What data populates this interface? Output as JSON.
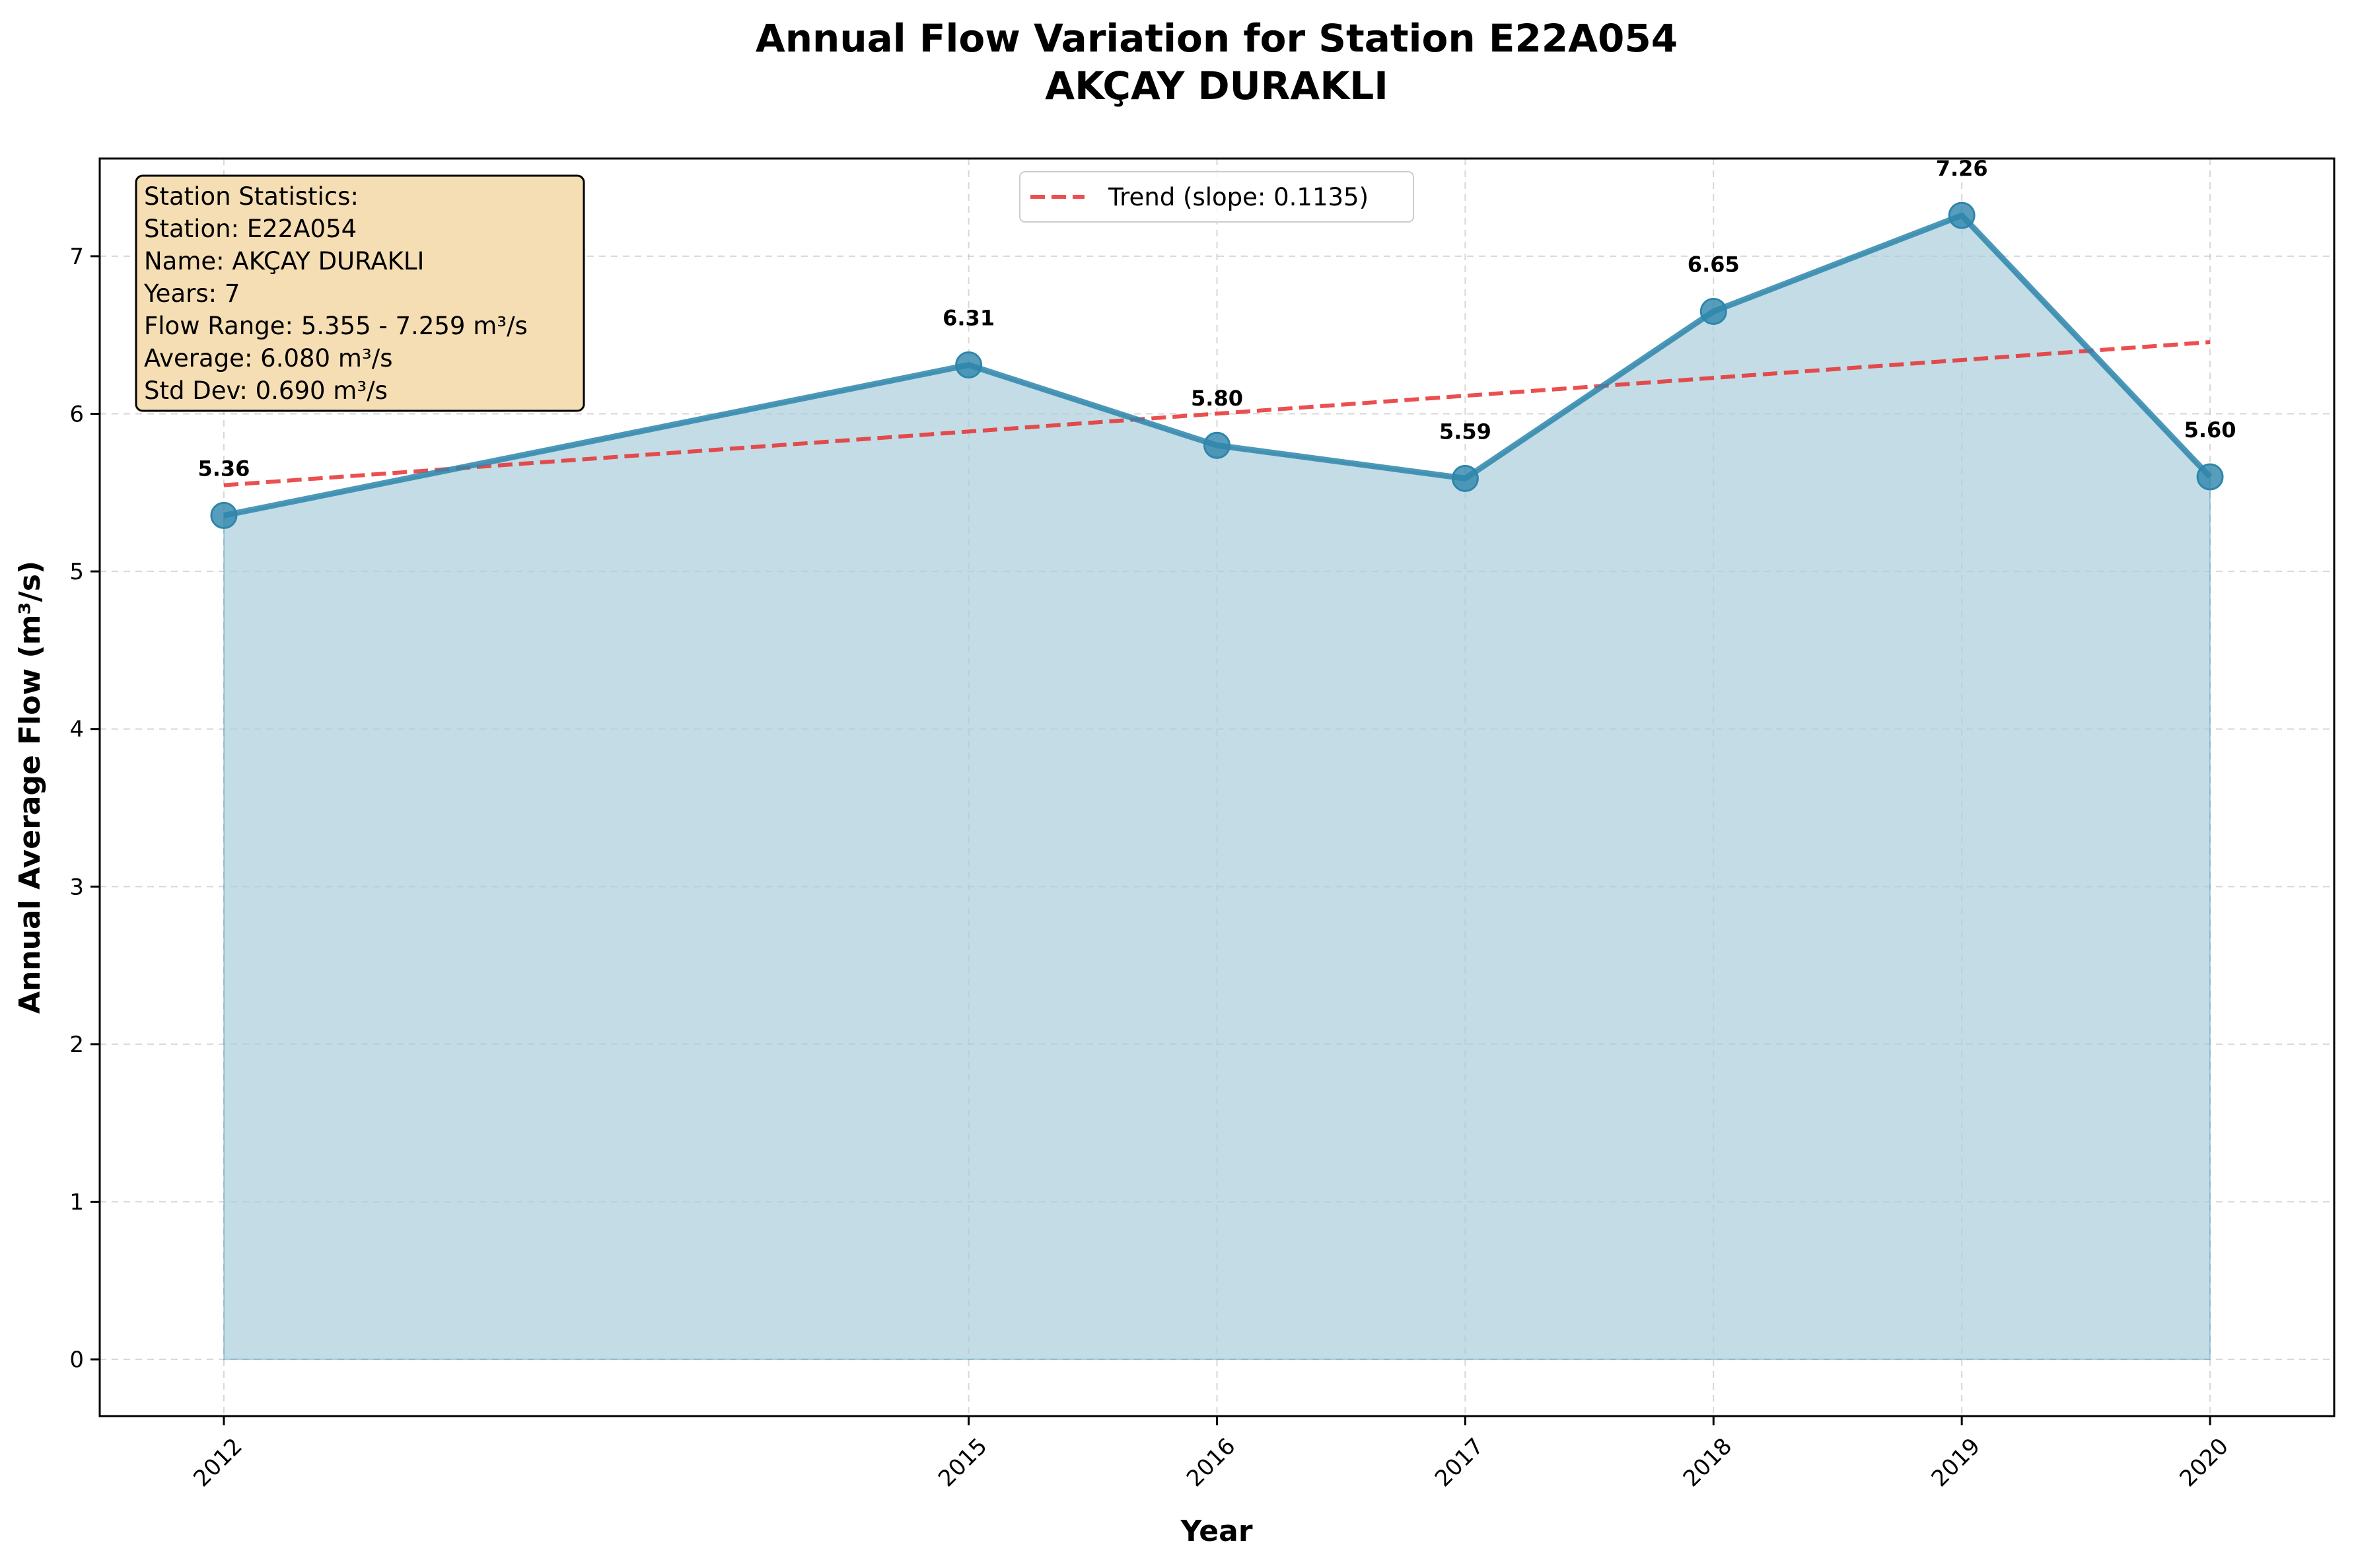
{
  "chart_data": {
    "type": "area",
    "title": "Annual Flow Variation for Station E22A054",
    "subtitle": "AKÇAY  DURAKLI",
    "xlabel": "Year",
    "ylabel": "Annual Average Flow (m³/s)",
    "x": [
      2012,
      2015,
      2016,
      2017,
      2018,
      2019,
      2020
    ],
    "x_tick_labels": [
      "2012",
      "2015",
      "2016",
      "2017",
      "2018",
      "2019",
      "2020"
    ],
    "xlim": [
      2011.5,
      2020.5
    ],
    "ylim": [
      -0.36,
      7.62
    ],
    "y_ticks": [
      0,
      1,
      2,
      3,
      4,
      5,
      6,
      7
    ],
    "y_tick_labels": [
      "0",
      "1",
      "2",
      "3",
      "4",
      "5",
      "6",
      "7"
    ],
    "grid": true,
    "series": [
      {
        "values": [
          5.355,
          6.31,
          5.8,
          5.59,
          6.65,
          7.259,
          5.6
        ],
        "data_labels": [
          "5.36",
          "6.31",
          "5.80",
          "5.59",
          "6.65",
          "7.26",
          "5.60"
        ],
        "color": "#2e86ab",
        "fill_color": "#a9cddc"
      },
      {
        "name": "Trend (slope: 0.1135)",
        "style": "dashed",
        "color": "#e83030",
        "slope": 0.1135,
        "x": [
          2012,
          2020
        ],
        "values": [
          5.547,
          6.455
        ]
      }
    ],
    "legend": {
      "position": "top-center",
      "entries": [
        "Trend (slope: 0.1135)"
      ]
    },
    "stats_box": {
      "position": "top-left",
      "lines": [
        "Station Statistics:",
        "Station: E22A054",
        "Name: AKÇAY  DURAKLI",
        "Years: 7",
        "Flow Range: 5.355 - 7.259 m³/s",
        "Average: 6.080 m³/s",
        "Std Dev: 0.690 m³/s"
      ],
      "background": "#f5deb3"
    }
  }
}
